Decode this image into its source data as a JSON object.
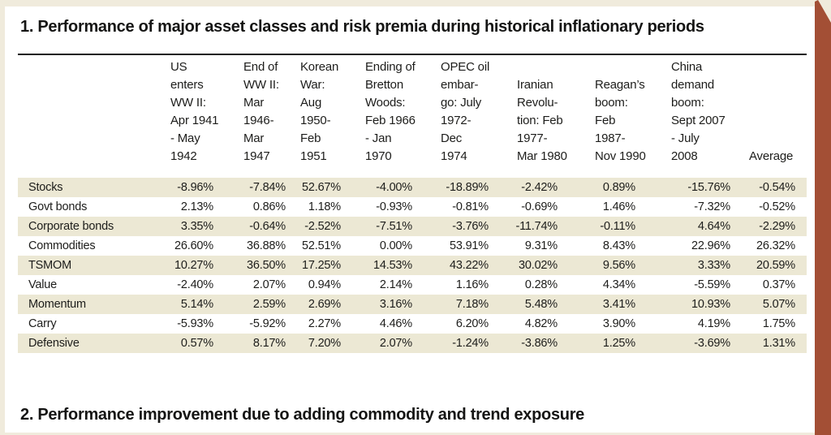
{
  "page": {
    "section1_title": "1. Performance of major asset classes and risk premia during historical inflationary periods",
    "section2_title": "2. Performance improvement due to adding commodity and trend exposure"
  },
  "table1": {
    "column_headers": [
      "US\nenters\nWW II:\nApr 1941\n- May\n1942",
      "End of\nWW II:\nMar\n1946-\nMar\n1947",
      "Korean\nWar:\nAug\n1950-\nFeb\n1951",
      "Ending of\nBretton\nWoods:\nFeb 1966\n- Jan\n1970",
      "OPEC oil\nembar-\ngo: July\n1972-\nDec\n1974",
      "Iranian\nRevolu-\ntion: Feb\n1977-\nMar 1980",
      "Reagan’s\nboom:\nFeb\n1987-\nNov 1990",
      "China\ndemand\nboom:\nSept 2007\n- July\n2008",
      "Average"
    ],
    "rows": [
      {
        "label": "Stocks",
        "values": [
          "-8.96%",
          "-7.84%",
          "52.67%",
          "-4.00%",
          "-18.89%",
          "-2.42%",
          "0.89%",
          "-15.76%",
          "-0.54%"
        ]
      },
      {
        "label": "Govt bonds",
        "values": [
          "2.13%",
          "0.86%",
          "1.18%",
          "-0.93%",
          "-0.81%",
          "-0.69%",
          "1.46%",
          "-7.32%",
          "-0.52%"
        ]
      },
      {
        "label": "Corporate bonds",
        "values": [
          "3.35%",
          "-0.64%",
          "-2.52%",
          "-7.51%",
          "-3.76%",
          "-11.74%",
          "-0.11%",
          "4.64%",
          "-2.29%"
        ]
      },
      {
        "label": "Commodities",
        "values": [
          "26.60%",
          "36.88%",
          "52.51%",
          "0.00%",
          "53.91%",
          "9.31%",
          "8.43%",
          "22.96%",
          "26.32%"
        ]
      },
      {
        "label": "TSMOM",
        "values": [
          "10.27%",
          "36.50%",
          "17.25%",
          "14.53%",
          "43.22%",
          "30.02%",
          "9.56%",
          "3.33%",
          "20.59%"
        ]
      },
      {
        "label": "Value",
        "values": [
          "-2.40%",
          "2.07%",
          "0.94%",
          "2.14%",
          "1.16%",
          "0.28%",
          "4.34%",
          "-5.59%",
          "0.37%"
        ]
      },
      {
        "label": "Momentum",
        "values": [
          "5.14%",
          "2.59%",
          "2.69%",
          "3.16%",
          "7.18%",
          "5.48%",
          "3.41%",
          "10.93%",
          "5.07%"
        ]
      },
      {
        "label": "Carry",
        "values": [
          "-5.93%",
          "-5.92%",
          "2.27%",
          "4.46%",
          "6.20%",
          "4.82%",
          "3.90%",
          "4.19%",
          "1.75%"
        ]
      },
      {
        "label": "Defensive",
        "values": [
          "0.57%",
          "8.17%",
          "7.20%",
          "2.07%",
          "-1.24%",
          "-3.86%",
          "1.25%",
          "-3.69%",
          "1.31%"
        ]
      }
    ]
  },
  "colors": {
    "page_background": "#F0EBDC",
    "content_background": "#FFFFFF",
    "row_stripe": "#ECE8D4",
    "accent_bar": "#A34F35",
    "text": "#1D1D1B",
    "title_rule": "#1B1B19",
    "header_rule": "#9C9A94"
  }
}
